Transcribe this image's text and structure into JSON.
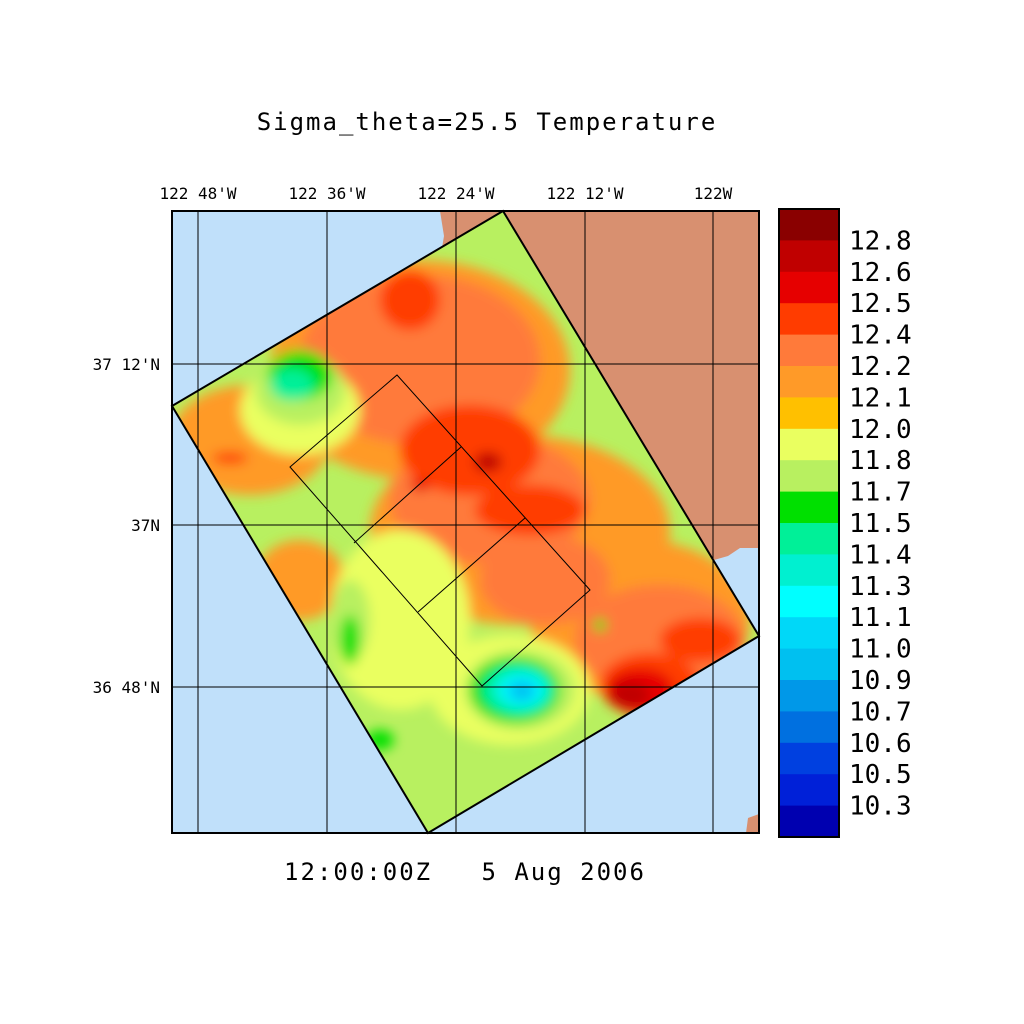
{
  "title": "Sigma_theta=25.5 Temperature",
  "timestamp": "12:00:00Z   5 Aug 2006",
  "lon_labels": [
    "122 48'W",
    "122 36'W",
    "122 24'W",
    "122 12'W",
    "122W"
  ],
  "lat_labels": [
    "37 12'N",
    "37N",
    "36 48'N"
  ],
  "colorbar": {
    "labels": [
      "12.8",
      "12.6",
      "12.5",
      "12.4",
      "12.2",
      "12.1",
      "12.0",
      "11.8",
      "11.7",
      "11.5",
      "11.4",
      "11.3",
      "11.1",
      "11.0",
      "10.9",
      "10.7",
      "10.6",
      "10.5",
      "10.3"
    ],
    "colors": [
      "#8a0000",
      "#c00000",
      "#e60000",
      "#ff3c00",
      "#ff7a3a",
      "#ff9a28",
      "#ffc000",
      "#eaff60",
      "#b8f060",
      "#00e000",
      "#00f098",
      "#00f0d0",
      "#00ffff",
      "#00d8f8",
      "#00c0f0",
      "#0098e8",
      "#0070e0",
      "#0040e0",
      "#0020d8",
      "#0000b0"
    ]
  },
  "colors": {
    "ocean": "#c0e0fa",
    "land": "#d89070"
  }
}
